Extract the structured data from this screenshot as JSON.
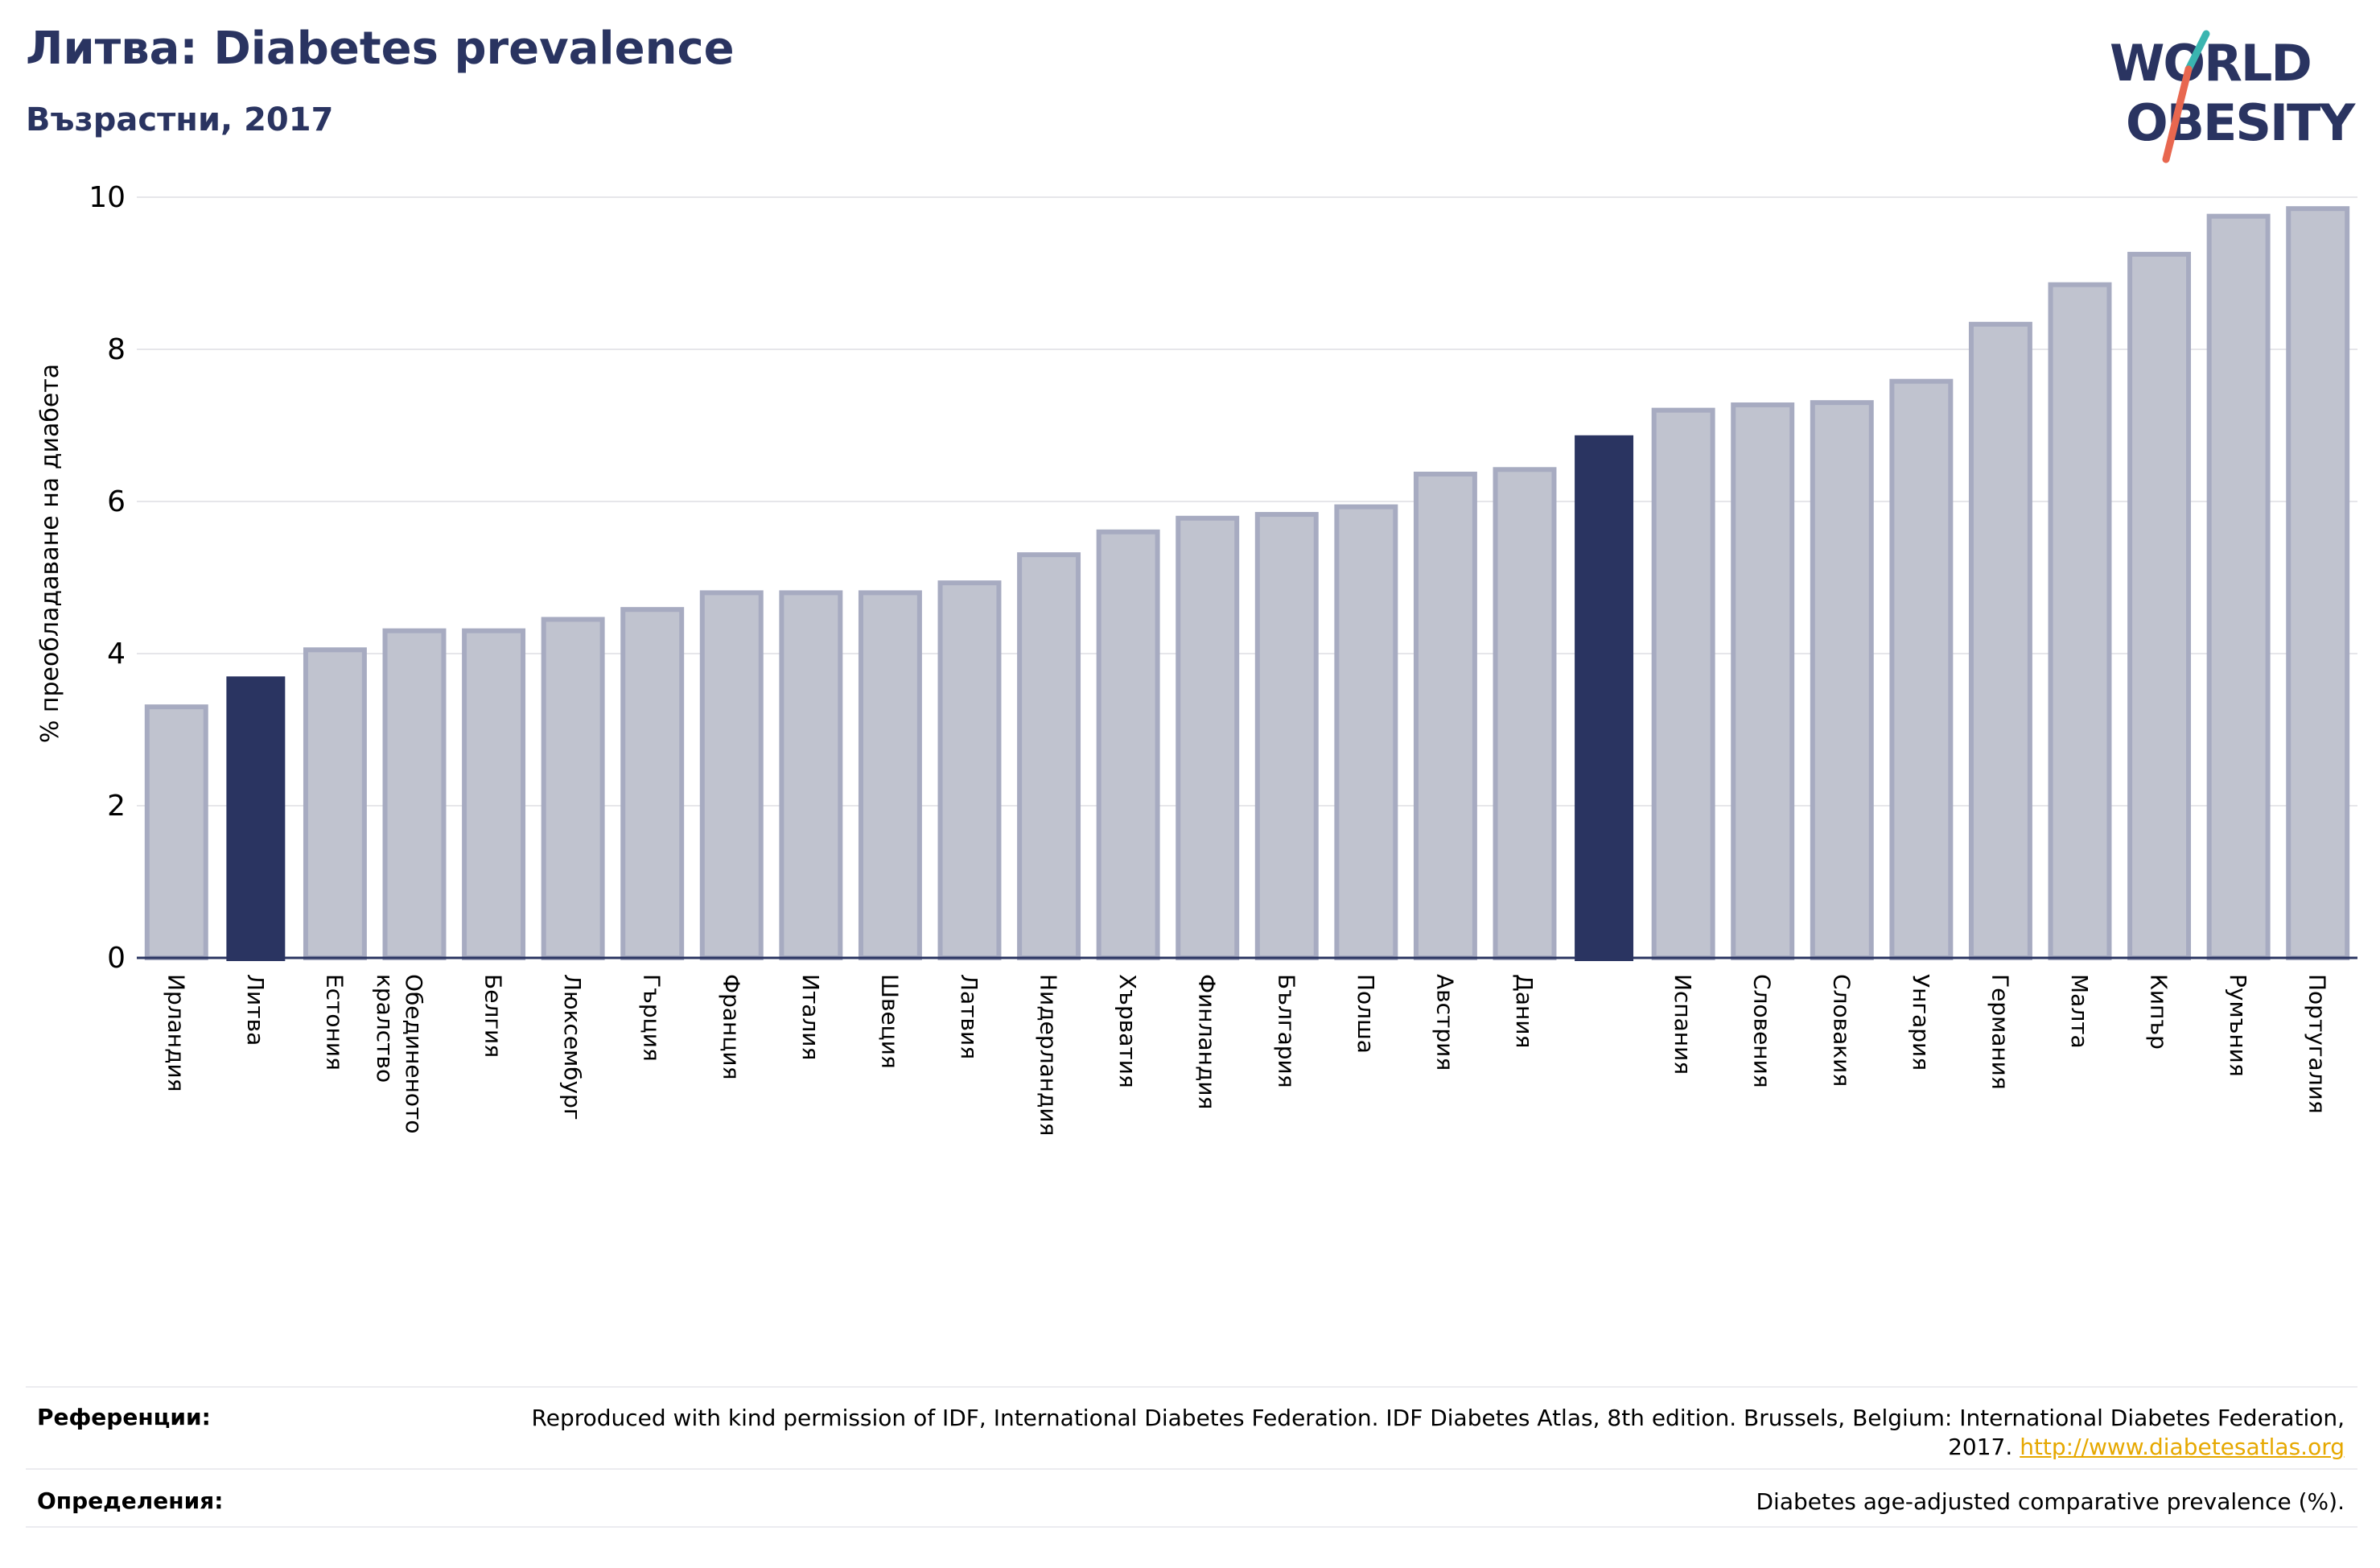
{
  "header": {
    "title": "Литва: Diabetes prevalence",
    "subtitle": "Възрастни, 2017"
  },
  "logo": {
    "line1": "WORLD",
    "line2": "OBESITY",
    "colors": {
      "text": "#2a3461",
      "teal": "#3ab5b0",
      "coral": "#e8674f"
    }
  },
  "colors": {
    "bar": "#c0c3cf",
    "bar_border": "#a7abc1",
    "highlight": "#2a3461",
    "grid": "#e6e6ea",
    "axis": "#2a3461"
  },
  "chart_data": {
    "type": "bar",
    "ylabel": "% преобладаване на диабета",
    "ylim": [
      0,
      10
    ],
    "yticks": [
      0,
      2,
      4,
      6,
      8,
      10
    ],
    "grid": true,
    "categories": [
      "Ирландия",
      "Литва",
      "Естония",
      "Обединеното кралство",
      "Белгия",
      "Люксембург",
      "Гърция",
      "Франция",
      "Италия",
      "Швеция",
      "Латвия",
      "Нидерландия",
      "Хърватия",
      "Финландия",
      "България",
      "Полша",
      "Австрия",
      "Дания",
      "",
      "Испания",
      "Словения",
      "Словакия",
      "Унгария",
      "Германия",
      "Малта",
      "Кипър",
      "Румъния",
      "Португалия"
    ],
    "values": [
      3.3,
      3.7,
      4.05,
      4.3,
      4.3,
      4.45,
      4.58,
      4.8,
      4.8,
      4.8,
      4.93,
      5.3,
      5.6,
      5.78,
      5.83,
      5.93,
      6.36,
      6.42,
      6.87,
      7.2,
      7.27,
      7.3,
      7.58,
      8.33,
      8.85,
      9.25,
      9.75,
      9.85
    ],
    "highlighted": [
      "Литва",
      ""
    ],
    "highlight_indices": [
      1,
      18
    ]
  },
  "footer": {
    "references_label": "Референции:",
    "references_text": "Reproduced with kind permission of IDF, International Diabetes Federation. IDF Diabetes Atlas, 8th edition. Brussels, Belgium: International Diabetes Federation, 2017.",
    "references_link": "http://www.diabetesatlas.org",
    "definitions_label": "Определения:",
    "definitions_text": "Diabetes age-adjusted comparative prevalence (%)."
  }
}
